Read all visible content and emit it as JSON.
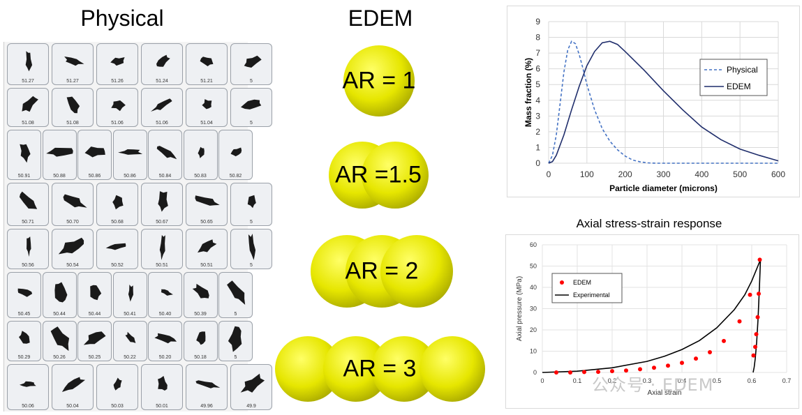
{
  "titles": {
    "physical": "Physical",
    "edem": "EDEM",
    "stress_chart": "Axial stress-strain response"
  },
  "particle_rows": [
    [
      "51.27",
      "51.27",
      "51.26",
      "51.24",
      "51.21",
      "5"
    ],
    [
      "51.08",
      "51.08",
      "51.06",
      "51.06",
      "51.04",
      "5"
    ],
    [
      "50.91",
      "50.88",
      "50.86",
      "50.86",
      "50.84",
      "50.83",
      "50.82"
    ],
    [
      "50.71",
      "50.70",
      "50.68",
      "50.67",
      "50.65",
      "5"
    ],
    [
      "50.56",
      "50.54",
      "50.52",
      "50.51",
      "50.51",
      "5"
    ],
    [
      "50.45",
      "50.44",
      "50.44",
      "50.41",
      "50.40",
      "50.39",
      "5"
    ],
    [
      "50.29",
      "50.26",
      "50.25",
      "50.22",
      "50.20",
      "50.18",
      "5"
    ],
    [
      "50.06",
      "50.04",
      "50.03",
      "50.01",
      "49.96",
      "49.9"
    ]
  ],
  "ar_shapes": [
    {
      "label": "AR = 1",
      "spheres": 1
    },
    {
      "label": "AR =1.5",
      "spheres": 2
    },
    {
      "label": "AR = 2",
      "spheres": 3
    },
    {
      "label": "AR = 3",
      "spheres": 4
    }
  ],
  "colors": {
    "sphere": "#e6e600",
    "physical_line": "#4472c4",
    "edem_line": "#1f2d6b",
    "edem_points": "#ff0000",
    "particle": "#1a1a1a"
  },
  "chart_data": [
    {
      "type": "line",
      "title": "",
      "xlabel": "Particle diameter (microns)",
      "ylabel": "Mass fraction (%)",
      "xlim": [
        0,
        600
      ],
      "ylim": [
        0,
        9
      ],
      "xticks": [
        0,
        100,
        200,
        300,
        400,
        500,
        600
      ],
      "yticks": [
        0,
        1,
        2,
        3,
        4,
        5,
        6,
        7,
        8,
        9
      ],
      "grid": true,
      "legend": "right",
      "series": [
        {
          "name": "Physical",
          "style": "dashed",
          "x": [
            0,
            10,
            20,
            30,
            40,
            50,
            60,
            70,
            80,
            90,
            100,
            120,
            140,
            160,
            180,
            200,
            220,
            240,
            260,
            280,
            300,
            600
          ],
          "y": [
            0,
            0.5,
            1.8,
            3.8,
            5.8,
            7.2,
            7.75,
            7.6,
            6.9,
            6.0,
            5.0,
            3.4,
            2.2,
            1.4,
            0.85,
            0.45,
            0.2,
            0.08,
            0.02,
            0,
            0,
            0
          ]
        },
        {
          "name": "EDEM",
          "style": "solid",
          "x": [
            0,
            10,
            20,
            40,
            60,
            80,
            100,
            120,
            140,
            160,
            180,
            200,
            250,
            300,
            350,
            400,
            450,
            500,
            550,
            600
          ],
          "y": [
            0,
            0.1,
            0.5,
            1.8,
            3.4,
            4.9,
            6.2,
            7.1,
            7.65,
            7.75,
            7.55,
            7.1,
            5.9,
            4.6,
            3.4,
            2.3,
            1.5,
            0.9,
            0.5,
            0.15
          ]
        }
      ]
    },
    {
      "type": "scatter",
      "title": "Axial stress-strain response",
      "xlabel": "Axial strain",
      "ylabel": "Axial pressure (MPa)",
      "xlim": [
        0,
        0.7
      ],
      "ylim": [
        0,
        60
      ],
      "xticks": [
        "0",
        "0.1",
        "0.2",
        "0.3",
        "0.4",
        "0.5",
        "0.6",
        "0.7"
      ],
      "yticks": [
        0,
        10,
        20,
        30,
        40,
        50,
        60
      ],
      "grid": true,
      "legend": "top-left",
      "series": [
        {
          "name": "EDEM",
          "style": "points",
          "x": [
            0.04,
            0.08,
            0.12,
            0.16,
            0.2,
            0.24,
            0.28,
            0.32,
            0.36,
            0.4,
            0.44,
            0.48,
            0.52,
            0.565,
            0.595,
            0.605,
            0.61,
            0.613,
            0.617,
            0.62,
            0.623
          ],
          "y": [
            0,
            0,
            0.2,
            0.3,
            0.6,
            0.9,
            1.5,
            2.2,
            3.2,
            4.5,
            6.5,
            9.5,
            14.8,
            24,
            36.5,
            8,
            12,
            18,
            26,
            37,
            53
          ]
        },
        {
          "name": "Experimental",
          "style": "solid",
          "x": [
            0,
            0.1,
            0.2,
            0.3,
            0.35,
            0.4,
            0.45,
            0.5,
            0.55,
            0.58,
            0.6,
            0.615,
            0.625,
            0.622,
            0.618,
            0.614,
            0.61,
            0.607,
            0.604
          ],
          "y": [
            0,
            0.6,
            2.2,
            5.2,
            7.6,
            10.8,
            15,
            21,
            29.5,
            36.5,
            43,
            49,
            53,
            40,
            25,
            14,
            6.5,
            2.5,
            0
          ]
        }
      ]
    }
  ]
}
